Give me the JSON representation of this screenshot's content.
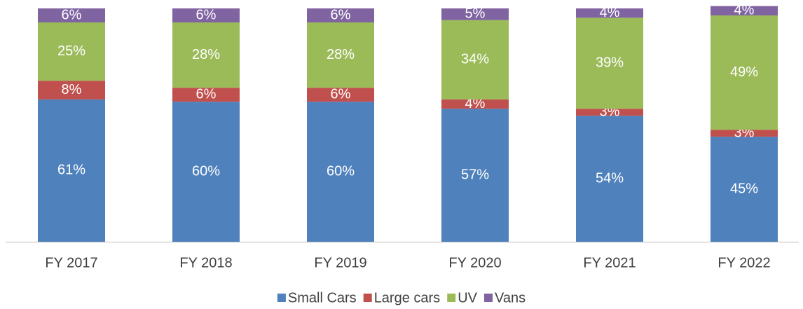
{
  "chart_data": {
    "type": "stacked_bar",
    "categories": [
      "FY 2017",
      "FY 2018",
      "FY 2019",
      "FY 2020",
      "FY 2021",
      "FY 2022"
    ],
    "series": [
      {
        "name": "Small Cars",
        "color": "#4f81bd",
        "values": [
          61,
          60,
          60,
          57,
          54,
          45
        ]
      },
      {
        "name": "Large cars",
        "color": "#c0504d",
        "values": [
          8,
          6,
          6,
          4,
          3,
          3
        ]
      },
      {
        "name": "UV",
        "color": "#9bbb59",
        "values": [
          25,
          28,
          28,
          34,
          39,
          49
        ]
      },
      {
        "name": "Vans",
        "color": "#8064a2",
        "values": [
          6,
          6,
          6,
          5,
          4,
          4
        ]
      }
    ],
    "value_labels": [
      [
        "61%",
        "60%",
        "60%",
        "57%",
        "54%",
        "45%"
      ],
      [
        "8%",
        "6%",
        "6%",
        "4%",
        "3%",
        "3%"
      ],
      [
        "25%",
        "28%",
        "28%",
        "34%",
        "39%",
        "49%"
      ],
      [
        "6%",
        "6%",
        "6%",
        "5%",
        "4%",
        "4%"
      ]
    ],
    "ylim": [
      0,
      100
    ],
    "legend": "bottom"
  }
}
